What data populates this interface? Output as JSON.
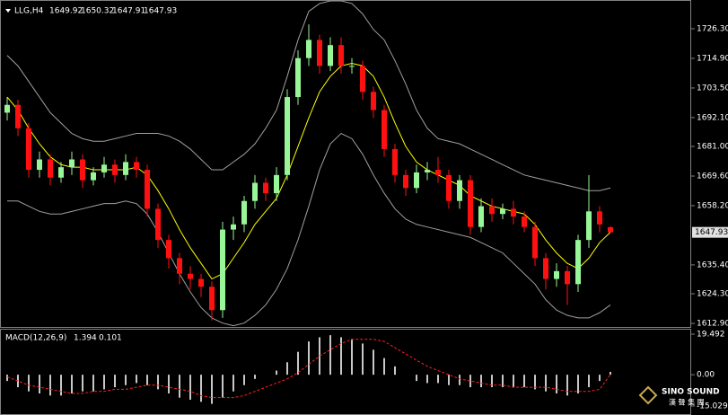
{
  "chart_data": [
    {
      "type": "candlestick",
      "title": "LLG,H4",
      "open": [
        1694,
        1697,
        1688,
        1672,
        1676,
        1669,
        1673,
        1676,
        1668,
        1671,
        1674,
        1670,
        1675,
        1672,
        1657,
        1645,
        1638,
        1632,
        1630,
        1627,
        1618,
        1649,
        1651,
        1660,
        1667,
        1663,
        1670,
        1700,
        1715,
        1722,
        1712,
        1720,
        1712,
        1712,
        1702,
        1695,
        1680,
        1670,
        1665,
        1671,
        1672,
        1670,
        1660,
        1668,
        1650,
        1658,
        1655,
        1657,
        1654,
        1650,
        1638,
        1630,
        1633,
        1628,
        1645,
        1656,
        1649.92
      ],
      "high": [
        1700,
        1699,
        1690,
        1679,
        1678,
        1675,
        1679,
        1678,
        1673,
        1677,
        1676,
        1678,
        1677,
        1674,
        1659,
        1647,
        1640,
        1635,
        1632,
        1629,
        1652,
        1654,
        1662,
        1670,
        1669,
        1673,
        1703,
        1718,
        1728,
        1724,
        1723,
        1723,
        1715,
        1714,
        1704,
        1697,
        1682,
        1672,
        1674,
        1675,
        1677,
        1672,
        1670,
        1670,
        1661,
        1661,
        1659,
        1660,
        1656,
        1652,
        1640,
        1636,
        1635,
        1647,
        1670,
        1658,
        1650.32
      ],
      "low": [
        1691,
        1685,
        1669,
        1669,
        1666,
        1667,
        1670,
        1665,
        1666,
        1669,
        1667,
        1668,
        1669,
        1654,
        1642,
        1634,
        1628,
        1626,
        1623,
        1614,
        1615,
        1645,
        1648,
        1657,
        1660,
        1660,
        1668,
        1697,
        1712,
        1709,
        1710,
        1709,
        1709,
        1699,
        1692,
        1677,
        1667,
        1662,
        1663,
        1668,
        1667,
        1657,
        1657,
        1647,
        1648,
        1652,
        1653,
        1651,
        1648,
        1635,
        1626,
        1627,
        1620,
        1625,
        1642,
        1648,
        1647.91
      ],
      "close": [
        1697,
        1688,
        1672,
        1676,
        1669,
        1673,
        1676,
        1668,
        1671,
        1674,
        1670,
        1675,
        1672,
        1657,
        1645,
        1638,
        1632,
        1630,
        1627,
        1618,
        1649,
        1651,
        1660,
        1667,
        1663,
        1670,
        1700,
        1715,
        1722,
        1712,
        1720,
        1712,
        1712,
        1702,
        1695,
        1680,
        1670,
        1665,
        1671,
        1672,
        1670,
        1660,
        1668,
        1650,
        1658,
        1655,
        1657,
        1654,
        1650,
        1638,
        1630,
        1633,
        1628,
        1645,
        1656,
        1651,
        1647.93
      ],
      "up_color": "#98f598",
      "down_color": "#ff1010",
      "series": [
        {
          "color": "#a0a0a0",
          "values": [
            1716,
            1712,
            1706,
            1700,
            1694,
            1690,
            1686,
            1684,
            1683,
            1683,
            1684,
            1685,
            1686,
            1686,
            1686,
            1685,
            1683,
            1680,
            1676,
            1672,
            1672,
            1675,
            1678,
            1682,
            1688,
            1695,
            1708,
            1722,
            1733,
            1736,
            1737,
            1737,
            1736,
            1732,
            1726,
            1722,
            1714,
            1705,
            1695,
            1688,
            1684,
            1683,
            1682,
            1680,
            1678,
            1676,
            1674,
            1672,
            1670,
            1669,
            1668,
            1667,
            1666,
            1665,
            1664,
            1664,
            1665
          ]
        },
        {
          "color": "#ffff00",
          "values": [
            1700,
            1695,
            1688,
            1682,
            1677,
            1674,
            1673,
            1673,
            1672,
            1672,
            1672,
            1672,
            1673,
            1670,
            1664,
            1657,
            1649,
            1642,
            1636,
            1630,
            1632,
            1638,
            1644,
            1651,
            1656,
            1661,
            1670,
            1681,
            1692,
            1702,
            1708,
            1712,
            1713,
            1712,
            1708,
            1700,
            1690,
            1681,
            1675,
            1672,
            1670,
            1668,
            1666,
            1662,
            1660,
            1658,
            1657,
            1656,
            1655,
            1651,
            1645,
            1640,
            1636,
            1634,
            1638,
            1644,
            1648
          ]
        },
        {
          "color": "#a0a0a0",
          "values": [
            1660,
            1660,
            1658,
            1656,
            1655,
            1655,
            1656,
            1657,
            1658,
            1659,
            1659,
            1660,
            1659,
            1655,
            1648,
            1640,
            1632,
            1625,
            1619,
            1615,
            1613,
            1612,
            1613,
            1616,
            1620,
            1626,
            1634,
            1645,
            1658,
            1672,
            1682,
            1686,
            1684,
            1678,
            1670,
            1663,
            1657,
            1653,
            1651,
            1650,
            1649,
            1648,
            1647,
            1646,
            1644,
            1642,
            1640,
            1636,
            1632,
            1628,
            1622,
            1618,
            1616,
            1615,
            1615,
            1617,
            1620
          ]
        }
      ],
      "ylim": [
        1611.86,
        1737.36
      ],
      "yticks": [
        {
          "value": 1726.3,
          "label": "1726.30"
        },
        {
          "value": 1714.9,
          "label": "1714.90"
        },
        {
          "value": 1703.5,
          "label": "1703.50"
        },
        {
          "value": 1692.1,
          "label": "1692.10"
        },
        {
          "value": 1681,
          "label": "1681.00"
        },
        {
          "value": 1669.6,
          "label": "1669.60"
        },
        {
          "value": 1658.2,
          "label": "1658.20"
        },
        {
          "value": 1635.4,
          "label": "1635.40"
        },
        {
          "value": 1624.3,
          "label": "1624.30"
        },
        {
          "value": 1612.9,
          "label": "1612.90"
        }
      ]
    },
    {
      "type": "macd",
      "title": "MACD(12,26,9)",
      "current": [
        1.394,
        0.101
      ],
      "series": [
        {
          "color": "#c8c8c8",
          "values": [
            -3,
            -6,
            -8,
            -9,
            -10,
            -10,
            -9,
            -8,
            -8,
            -7,
            -6,
            -5,
            -4,
            -5,
            -7,
            -9,
            -11,
            -12,
            -13,
            -14,
            -11,
            -8,
            -5,
            -2,
            0,
            2,
            6,
            11,
            16,
            18,
            19,
            18,
            17,
            15,
            12,
            8,
            4,
            0,
            -3,
            -4,
            -4,
            -5,
            -5,
            -6,
            -6,
            -6,
            -6,
            -6,
            -6,
            -7,
            -8,
            -9,
            -10,
            -9,
            -6,
            -3,
            1.394
          ]
        },
        {
          "color": "#ff2020",
          "values": [
            -1,
            -3,
            -5,
            -6,
            -7,
            -8,
            -9,
            -9,
            -8,
            -8,
            -7,
            -7,
            -6,
            -5,
            -5,
            -6,
            -7,
            -8,
            -10,
            -11,
            -11,
            -11,
            -10,
            -8,
            -6,
            -4,
            -2,
            1,
            5,
            9,
            12,
            15,
            17,
            17,
            17,
            16,
            13,
            10,
            7,
            4,
            2,
            0,
            -2,
            -3,
            -4,
            -5,
            -5,
            -6,
            -6,
            -6,
            -6,
            -7,
            -8,
            -8,
            -8,
            -7,
            0.101
          ]
        }
      ],
      "ylim": [
        -15.029,
        19.492
      ],
      "yticks": [
        19.492,
        {
          "value": 0,
          "label": "0.00"
        },
        -15.029
      ]
    }
  ],
  "watermark": {
    "brand": "SINO SOUND",
    "subtitle": "漢 聲 集 團"
  }
}
